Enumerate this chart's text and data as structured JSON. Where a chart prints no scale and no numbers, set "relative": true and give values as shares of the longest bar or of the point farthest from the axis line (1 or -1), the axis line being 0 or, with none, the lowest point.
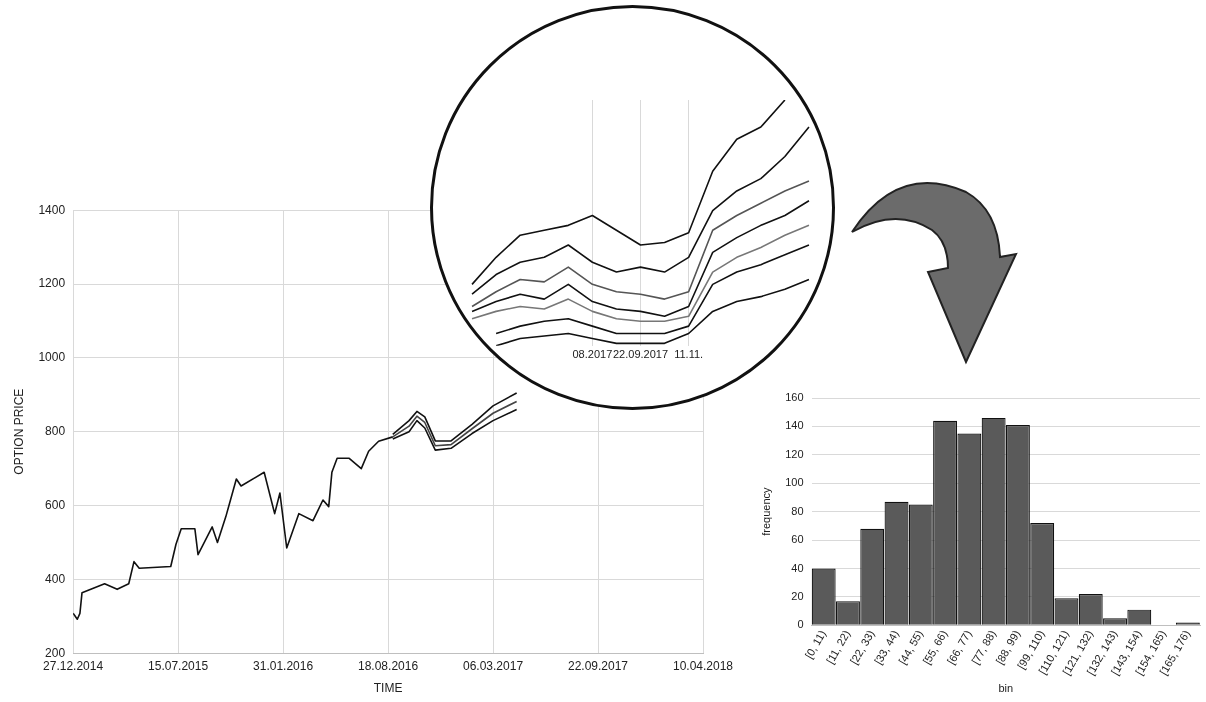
{
  "chart_data": [
    {
      "type": "line",
      "xlabel": "TIME",
      "ylabel": "OPTION PRICE",
      "xlim": [
        "2014-12-27",
        "2018-04-10"
      ],
      "xticks": [
        {
          "value": "2014-12-27",
          "label": "27.12.2014"
        },
        {
          "value": "2015-07-15",
          "label": "15.07.2015"
        },
        {
          "value": "2016-01-31",
          "label": "31.01.2016"
        },
        {
          "value": "2016-08-18",
          "label": "18.08.2016"
        },
        {
          "value": "2017-03-06",
          "label": "06.03.2017"
        },
        {
          "value": "2017-09-22",
          "label": "22.09.2017"
        },
        {
          "value": "2018-04-10",
          "label": "10.04.2018"
        }
      ],
      "ylim": [
        200,
        1400
      ],
      "yticks": [
        200,
        400,
        600,
        800,
        1000,
        1200,
        1400
      ],
      "grid": true,
      "series": [
        {
          "color": "#111111",
          "x": [
            "2014-12-27",
            "2015-01-04",
            "2015-01-09",
            "2015-01-13",
            "2015-02-25",
            "2015-03-21",
            "2015-04-12",
            "2015-04-22",
            "2015-05-02",
            "2015-07-01",
            "2015-07-11",
            "2015-07-21",
            "2015-08-16",
            "2015-08-22",
            "2015-09-18",
            "2015-09-28",
            "2015-10-14",
            "2015-11-03",
            "2015-11-12",
            "2015-12-26",
            "2016-01-15",
            "2016-01-25",
            "2016-02-07",
            "2016-03-01",
            "2016-03-28",
            "2016-04-16",
            "2016-04-27",
            "2016-05-03",
            "2016-05-13",
            "2016-06-05",
            "2016-06-28",
            "2016-07-12",
            "2016-07-31",
            "2016-08-27"
          ],
          "values": [
            308,
            292,
            308,
            364,
            388,
            373,
            388,
            448,
            430,
            435,
            495,
            537,
            537,
            467,
            542,
            500,
            570,
            672,
            653,
            690,
            578,
            634,
            485,
            578,
            559,
            615,
            597,
            690,
            728,
            728,
            700,
            747,
            774,
            786
          ]
        },
        {
          "color": "#111111",
          "x": [
            "2016-08-27",
            "2016-09-27",
            "2016-10-12",
            "2016-10-27",
            "2016-11-16",
            "2016-12-16",
            "2017-01-25",
            "2017-03-06",
            "2017-04-20"
          ],
          "values": [
            793,
            830,
            855,
            840,
            775,
            775,
            820,
            870,
            905
          ]
        },
        {
          "color": "#444444",
          "x": [
            "2016-08-27",
            "2016-09-27",
            "2016-10-12",
            "2016-10-27",
            "2016-11-16",
            "2016-12-16",
            "2017-01-25",
            "2017-03-06",
            "2017-04-20"
          ],
          "values": [
            786,
            815,
            842,
            825,
            762,
            765,
            808,
            850,
            882
          ]
        },
        {
          "color": "#111111",
          "x": [
            "2016-08-27",
            "2016-09-27",
            "2016-10-12",
            "2016-10-27",
            "2016-11-16",
            "2016-12-16",
            "2017-01-25",
            "2017-03-06",
            "2017-04-20"
          ],
          "values": [
            780,
            800,
            830,
            810,
            750,
            755,
            795,
            830,
            860
          ]
        }
      ]
    },
    {
      "type": "line",
      "relative": true,
      "grid": "x",
      "categories": [
        null,
        null,
        null,
        null,
        null,
        "08.2017",
        null,
        "22.09.2017",
        null,
        "11.11.",
        null,
        null,
        null,
        null,
        null
      ],
      "series": [
        {
          "color": "#111111",
          "values": [
            0.25,
            0.36,
            0.45,
            0.47,
            0.49,
            0.53,
            0.47,
            0.41,
            0.42,
            0.46,
            0.71,
            0.84,
            0.89,
            1,
            null
          ]
        },
        {
          "color": "#111111",
          "values": [
            0.21,
            0.29,
            0.34,
            0.36,
            0.41,
            0.34,
            0.3,
            0.32,
            0.3,
            0.36,
            0.55,
            0.63,
            0.68,
            0.77,
            0.89
          ]
        },
        {
          "color": "#555555",
          "values": [
            0.16,
            0.22,
            0.27,
            0.26,
            0.32,
            0.25,
            0.22,
            0.21,
            0.19,
            0.22,
            0.47,
            0.53,
            0.58,
            0.63,
            0.67
          ]
        },
        {
          "color": "#111111",
          "values": [
            0.14,
            0.18,
            0.21,
            0.19,
            0.25,
            0.18,
            0.15,
            0.14,
            0.12,
            0.16,
            0.38,
            0.44,
            0.49,
            0.53,
            0.59
          ]
        },
        {
          "color": "#777777",
          "values": [
            0.11,
            0.14,
            0.16,
            0.15,
            0.19,
            0.14,
            0.11,
            0.1,
            0.1,
            0.12,
            0.3,
            0.36,
            0.4,
            0.45,
            0.49
          ]
        },
        {
          "color": "#111111",
          "values": [
            null,
            0.05,
            0.08,
            0.1,
            0.11,
            0.08,
            0.05,
            0.05,
            0.05,
            0.08,
            0.25,
            0.3,
            0.33,
            0.37,
            0.41
          ]
        },
        {
          "color": "#111111",
          "values": [
            null,
            0,
            0.03,
            0.04,
            0.05,
            0.03,
            0.01,
            0.01,
            0.01,
            0.05,
            0.14,
            0.18,
            0.2,
            0.23,
            0.27
          ]
        }
      ]
    },
    {
      "type": "bar",
      "xlabel": "bin",
      "ylabel": "frequency",
      "color": "#5a5a5a",
      "categories": [
        "[0, 11)",
        "[11, 22)",
        "[22, 33)",
        "[33, 44)",
        "[44, 55)",
        "[55, 66)",
        "[66, 77)",
        "[77, 88)",
        "[88, 99)",
        "[99, 110)",
        "[110, 121)",
        "[121, 132)",
        "[132, 143)",
        "[143, 154)",
        "[154, 165)",
        "[165, 176)"
      ],
      "values": [
        40,
        17,
        68,
        87,
        85,
        144,
        135,
        146,
        141,
        72,
        19,
        22,
        5,
        11,
        0,
        2
      ],
      "ylim": [
        0,
        160
      ],
      "yticks": [
        0,
        20,
        40,
        60,
        80,
        100,
        120,
        140,
        160
      ],
      "grid": "y"
    }
  ]
}
